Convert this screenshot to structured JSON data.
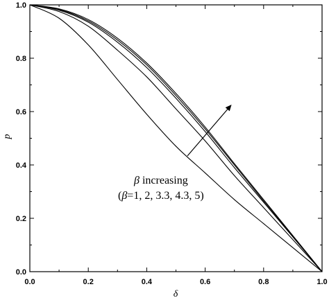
{
  "chart_data": {
    "type": "line",
    "xlabel": "δ",
    "ylabel": "p",
    "xlim": [
      0.0,
      1.0
    ],
    "ylim": [
      0.0,
      1.0
    ],
    "x_ticks": [
      "0.0",
      "0.2",
      "0.4",
      "0.6",
      "0.8",
      "1.0"
    ],
    "y_ticks": [
      "0.0",
      "0.2",
      "0.4",
      "0.6",
      "0.8",
      "1.0"
    ],
    "grid": false,
    "annotation": {
      "symbol": "β",
      "line1_rest": " increasing",
      "line2_prefix": "(",
      "line2_rest": "=1, 2, 3.3, 4.3, 5)"
    },
    "x": [
      0.0,
      0.1,
      0.2,
      0.3,
      0.4,
      0.5,
      0.6,
      0.7,
      0.8,
      0.9,
      1.0
    ],
    "series": [
      {
        "values": [
          1.0,
          0.95,
          0.85,
          0.72,
          0.59,
          0.47,
          0.37,
          0.27,
          0.18,
          0.09,
          0.0
        ]
      },
      {
        "values": [
          1.0,
          0.975,
          0.92,
          0.83,
          0.73,
          0.61,
          0.49,
          0.36,
          0.24,
          0.12,
          0.0
        ]
      },
      {
        "values": [
          1.0,
          0.98,
          0.935,
          0.86,
          0.765,
          0.65,
          0.525,
          0.39,
          0.26,
          0.13,
          0.0
        ]
      },
      {
        "values": [
          1.0,
          0.983,
          0.94,
          0.868,
          0.775,
          0.66,
          0.535,
          0.4,
          0.265,
          0.133,
          0.0
        ]
      },
      {
        "values": [
          1.0,
          0.985,
          0.945,
          0.875,
          0.782,
          0.668,
          0.542,
          0.405,
          0.27,
          0.135,
          0.0
        ]
      }
    ]
  }
}
